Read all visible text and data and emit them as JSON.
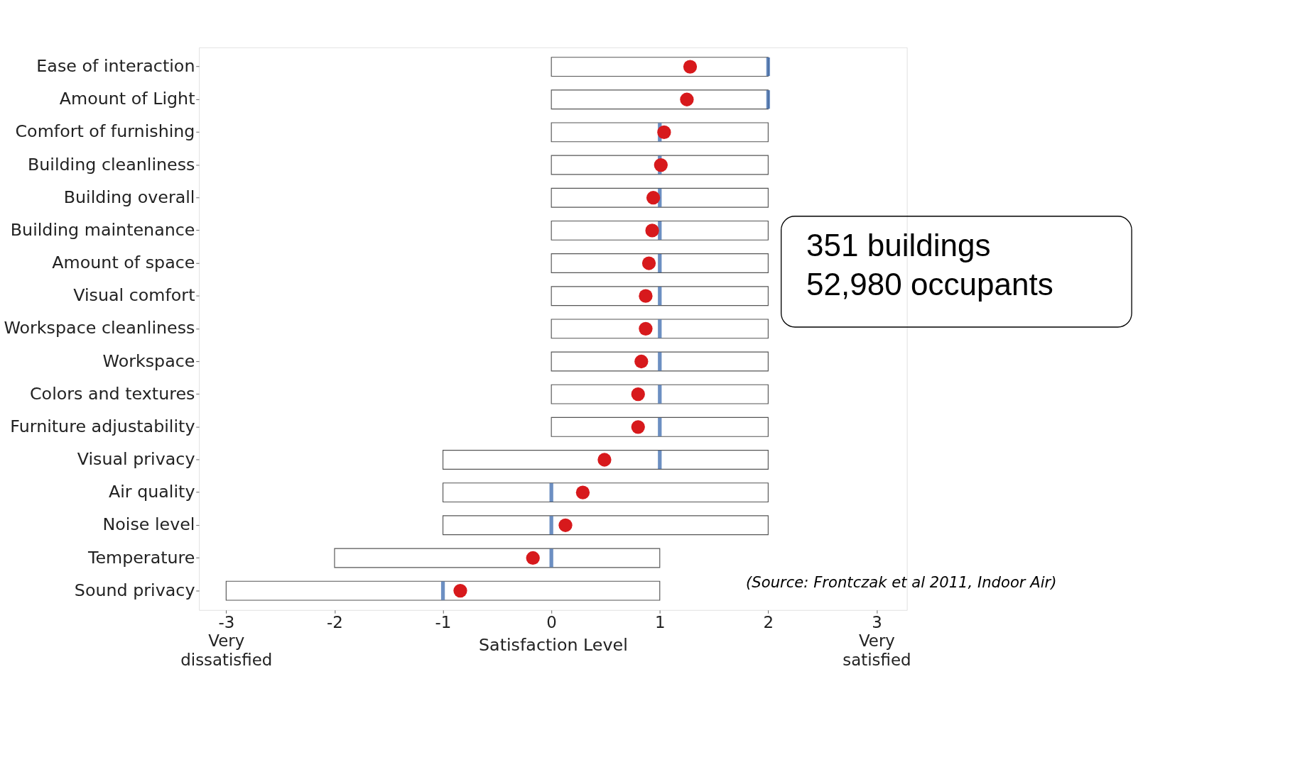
{
  "chart_data": {
    "type": "box",
    "orientation": "horizontal",
    "xlabel": "Satisfaction Level",
    "categories": [
      "Ease of interaction",
      "Amount of Light",
      "Comfort of furnishing",
      "Building cleanliness",
      "Building overall",
      "Building maintenance",
      "Amount of space",
      "Visual comfort",
      "Workspace cleanliness",
      "Workspace",
      "Colors and textures",
      "Furniture adjustability",
      "Visual privacy",
      "Air quality",
      "Noise level",
      "Temperature",
      "Sound privacy"
    ],
    "boxes": [
      {
        "low": 0,
        "q1": 0,
        "median": 2,
        "q3": 2,
        "high": 2,
        "mean": 1.28
      },
      {
        "low": 0,
        "q1": 0,
        "median": 2,
        "q3": 2,
        "high": 2,
        "mean": 1.25
      },
      {
        "low": 0,
        "q1": 0,
        "median": 1,
        "q3": 2,
        "high": 2,
        "mean": 1.04
      },
      {
        "low": 0,
        "q1": 0,
        "median": 1,
        "q3": 2,
        "high": 2,
        "mean": 1.01
      },
      {
        "low": 0,
        "q1": 0,
        "median": 1,
        "q3": 2,
        "high": 2,
        "mean": 0.94
      },
      {
        "low": 0,
        "q1": 0,
        "median": 1,
        "q3": 2,
        "high": 2,
        "mean": 0.93
      },
      {
        "low": 0,
        "q1": 0,
        "median": 1,
        "q3": 2,
        "high": 2,
        "mean": 0.9
      },
      {
        "low": 0,
        "q1": 0,
        "median": 1,
        "q3": 2,
        "high": 2,
        "mean": 0.87
      },
      {
        "low": 0,
        "q1": 0,
        "median": 1,
        "q3": 2,
        "high": 2,
        "mean": 0.87
      },
      {
        "low": 0,
        "q1": 0,
        "median": 1,
        "q3": 2,
        "high": 2,
        "mean": 0.83
      },
      {
        "low": 0,
        "q1": 0,
        "median": 1,
        "q3": 2,
        "high": 2,
        "mean": 0.8
      },
      {
        "low": 0,
        "q1": 0,
        "median": 1,
        "q3": 2,
        "high": 2,
        "mean": 0.8
      },
      {
        "low": -1,
        "q1": -1,
        "median": 1,
        "q3": 2,
        "high": 2,
        "mean": 0.49
      },
      {
        "low": -1,
        "q1": -1,
        "median": 0,
        "q3": 2,
        "high": 2,
        "mean": 0.29
      },
      {
        "low": -1,
        "q1": -1,
        "median": 0,
        "q3": 2,
        "high": 2,
        "mean": 0.13
      },
      {
        "low": -2,
        "q1": -2,
        "median": 0,
        "q3": 1,
        "high": 1,
        "mean": -0.17
      },
      {
        "low": -3,
        "q1": -3,
        "median": -1,
        "q3": 1,
        "high": 1,
        "mean": -0.84
      }
    ],
    "color": "#ffffff",
    "xlim": [
      -3.25,
      3.28
    ],
    "xticks": [
      {
        "value": -3,
        "label": "-3\nVery\ndissatisfied"
      },
      -2,
      -1,
      0,
      1,
      2,
      {
        "value": 3,
        "label": "3\nVery\nsatisfied"
      }
    ],
    "grid": false,
    "annotations": [
      "351 buildings\n52,980 occupants",
      "(Source: Frontczak et al 2011, Indoor Air)"
    ]
  }
}
